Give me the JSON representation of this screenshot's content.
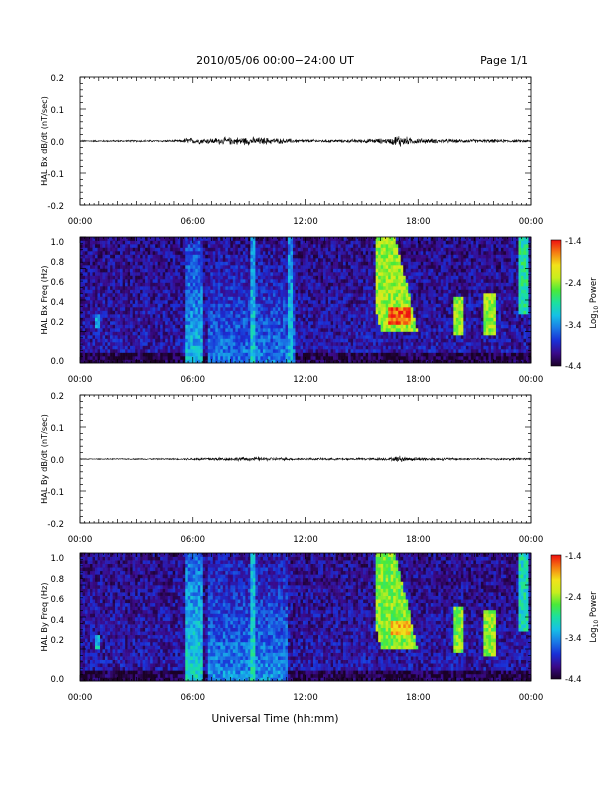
{
  "header": {
    "title": "2010/05/06  00:00−24:00 UT",
    "page": "Page 1/1"
  },
  "bottom_label": "Universal Time (hh:mm)",
  "colorbar": {
    "label_prefix": "Log",
    "label_sub": "10",
    "label_suffix": " Power",
    "ticks": [
      "-1.4",
      "-2.4",
      "-3.4",
      "-4.4"
    ],
    "range": [
      -4.4,
      -1.4
    ],
    "colors": [
      "#1a0026",
      "#3a0a8a",
      "#1a2fd6",
      "#1a7ae6",
      "#16c0e6",
      "#1be0a0",
      "#49ea3a",
      "#c8ee1e",
      "#f2e21a",
      "#f57d12",
      "#ee1010"
    ]
  },
  "chart_data": [
    {
      "type": "line",
      "panel": "bx_derivative",
      "ylabel": "HAL Bx dB/dt (nT/sec)",
      "ylim": [
        -0.2,
        0.2
      ],
      "yticks": [
        "0.2",
        "0.1",
        "0.0",
        "-0.1",
        "-0.2"
      ],
      "xlim": [
        0,
        24
      ],
      "xticks": [
        "00:00",
        "06:00",
        "12:00",
        "18:00",
        "00:00"
      ],
      "baseline": 0.0,
      "activity": [
        {
          "t": 0.0,
          "amp": 0.002
        },
        {
          "t": 5.5,
          "amp": 0.003
        },
        {
          "t": 5.6,
          "amp": 0.012
        },
        {
          "t": 6.0,
          "amp": 0.008
        },
        {
          "t": 7.0,
          "amp": 0.009
        },
        {
          "t": 8.0,
          "amp": 0.011
        },
        {
          "t": 9.0,
          "amp": 0.012
        },
        {
          "t": 10.0,
          "amp": 0.01
        },
        {
          "t": 11.0,
          "amp": 0.007
        },
        {
          "t": 12.0,
          "amp": 0.005
        },
        {
          "t": 14.0,
          "amp": 0.004
        },
        {
          "t": 16.5,
          "amp": 0.008
        },
        {
          "t": 17.0,
          "amp": 0.02
        },
        {
          "t": 17.5,
          "amp": 0.01
        },
        {
          "t": 18.5,
          "amp": 0.007
        },
        {
          "t": 20.0,
          "amp": 0.005
        },
        {
          "t": 22.0,
          "amp": 0.005
        },
        {
          "t": 24.0,
          "amp": 0.003
        }
      ]
    },
    {
      "type": "heatmap",
      "panel": "bx_spectrogram",
      "ylabel": "HAL Bx Freq (Hz)",
      "ylim": [
        0.0,
        1.0
      ],
      "yticks": [
        "1.0",
        "0.8",
        "0.6",
        "0.4",
        "0.2",
        "0.0"
      ],
      "xlim": [
        0,
        24
      ],
      "xticks": [
        "00:00",
        "06:00",
        "12:00",
        "18:00",
        "00:00"
      ],
      "value_range": [
        -4.4,
        -1.4
      ],
      "features": [
        {
          "kind": "band",
          "t0": 5.6,
          "t1": 6.6,
          "level": -3.2
        },
        {
          "kind": "band",
          "t0": 6.8,
          "t1": 11.5,
          "level": -3.5
        },
        {
          "kind": "streak",
          "t": 9.2,
          "level": -3.1
        },
        {
          "kind": "streak",
          "t": 11.2,
          "level": -3.2
        },
        {
          "kind": "patch",
          "t0": 0.8,
          "t1": 1.1,
          "f0": 0.28,
          "f1": 0.38,
          "level": -3.3
        },
        {
          "kind": "plume",
          "t0": 15.8,
          "t1": 18.6,
          "f0": 0.25,
          "f1": 1.0,
          "level": -2.4
        },
        {
          "kind": "core",
          "t0": 16.4,
          "t1": 17.6,
          "f0": 0.3,
          "f1": 0.45,
          "level": -1.6
        },
        {
          "kind": "patch",
          "t0": 19.9,
          "t1": 20.4,
          "f0": 0.22,
          "f1": 0.52,
          "level": -2.4
        },
        {
          "kind": "patch",
          "t0": 21.5,
          "t1": 22.2,
          "f0": 0.22,
          "f1": 0.55,
          "level": -2.4
        },
        {
          "kind": "patch",
          "t0": 23.4,
          "t1": 23.9,
          "f0": 0.4,
          "f1": 1.0,
          "level": -2.9
        }
      ]
    },
    {
      "type": "line",
      "panel": "by_derivative",
      "ylabel": "HAL By dB/dt (nT/sec)",
      "ylim": [
        -0.2,
        0.2
      ],
      "yticks": [
        "0.2",
        "0.1",
        "0.0",
        "-0.1",
        "-0.2"
      ],
      "xlim": [
        0,
        24
      ],
      "xticks": [
        "00:00",
        "06:00",
        "12:00",
        "18:00",
        "00:00"
      ],
      "baseline": 0.0,
      "activity": [
        {
          "t": 0.0,
          "amp": 0.001
        },
        {
          "t": 5.5,
          "amp": 0.002
        },
        {
          "t": 6.0,
          "amp": 0.004
        },
        {
          "t": 8.0,
          "amp": 0.005
        },
        {
          "t": 9.0,
          "amp": 0.006
        },
        {
          "t": 10.0,
          "amp": 0.005
        },
        {
          "t": 12.0,
          "amp": 0.003
        },
        {
          "t": 14.0,
          "amp": 0.003
        },
        {
          "t": 16.5,
          "amp": 0.004
        },
        {
          "t": 17.0,
          "amp": 0.01
        },
        {
          "t": 17.5,
          "amp": 0.006
        },
        {
          "t": 20.0,
          "amp": 0.003
        },
        {
          "t": 24.0,
          "amp": 0.003
        }
      ]
    },
    {
      "type": "heatmap",
      "panel": "by_spectrogram",
      "ylabel": "HAL By Freq (Hz)",
      "ylim": [
        0.0,
        1.0
      ],
      "yticks": [
        "1.0",
        "0.8",
        "0.6",
        "0.4",
        "0.2",
        "0.0"
      ],
      "xlim": [
        0,
        24
      ],
      "xticks": [
        "00:00",
        "06:00",
        "12:00",
        "18:00",
        "00:00"
      ],
      "value_range": [
        -4.4,
        -1.4
      ],
      "features": [
        {
          "kind": "band",
          "t0": 5.6,
          "t1": 6.6,
          "level": -3.0
        },
        {
          "kind": "band",
          "t0": 6.8,
          "t1": 11.0,
          "level": -3.4
        },
        {
          "kind": "streak",
          "t": 9.2,
          "level": -3.0
        },
        {
          "kind": "patch",
          "t0": 0.8,
          "t1": 1.1,
          "f0": 0.26,
          "f1": 0.36,
          "level": -3.2
        },
        {
          "kind": "plume",
          "t0": 15.8,
          "t1": 18.6,
          "f0": 0.25,
          "f1": 1.0,
          "level": -2.5
        },
        {
          "kind": "core",
          "t0": 16.6,
          "t1": 17.6,
          "f0": 0.35,
          "f1": 0.48,
          "level": -1.9
        },
        {
          "kind": "patch",
          "t0": 19.9,
          "t1": 20.4,
          "f0": 0.22,
          "f1": 0.58,
          "level": -2.5
        },
        {
          "kind": "patch",
          "t0": 21.5,
          "t1": 22.1,
          "f0": 0.2,
          "f1": 0.56,
          "level": -2.4
        },
        {
          "kind": "patch",
          "t0": 23.4,
          "t1": 23.9,
          "f0": 0.4,
          "f1": 1.0,
          "level": -3.0
        }
      ]
    }
  ]
}
